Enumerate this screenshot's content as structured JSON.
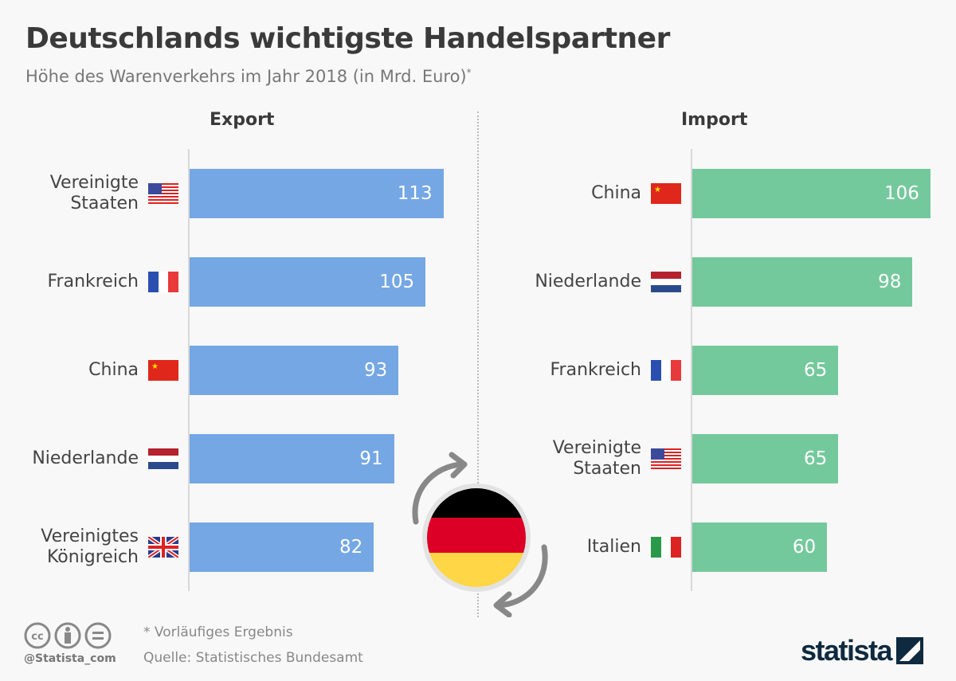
{
  "title": "Deutschlands wichtigste Handelspartner",
  "subtitle": "Höhe des Warenverkehrs im Jahr 2018 (in Mrd. Euro)",
  "subtitle_mark": "*",
  "chart_data": [
    {
      "type": "bar",
      "orientation": "horizontal",
      "title": "Export",
      "color": "#74a7e4",
      "categories": [
        "Vereinigte Staaten",
        "Frankreich",
        "China",
        "Niederlande",
        "Vereinigtes Königreich"
      ],
      "flags": [
        "us",
        "fr",
        "cn",
        "nl",
        "gb"
      ],
      "values": [
        113,
        105,
        93,
        91,
        82
      ],
      "xlim": [
        0,
        113
      ]
    },
    {
      "type": "bar",
      "orientation": "horizontal",
      "title": "Import",
      "color": "#74c99c",
      "categories": [
        "China",
        "Niederlande",
        "Frankreich",
        "Vereinigte Staaten",
        "Italien"
      ],
      "flags": [
        "cn",
        "nl",
        "fr",
        "us",
        "it"
      ],
      "values": [
        106,
        98,
        65,
        65,
        60
      ],
      "xlim": [
        0,
        106
      ]
    }
  ],
  "center_icon": "germany-flag-exchange",
  "footer": {
    "note": "* Vorläufiges Ergebnis",
    "source": "Quelle: Statistisches Bundesamt",
    "handle": "@Statista_com",
    "license_icons": [
      "cc",
      "by",
      "nd"
    ],
    "brand": "statista"
  }
}
